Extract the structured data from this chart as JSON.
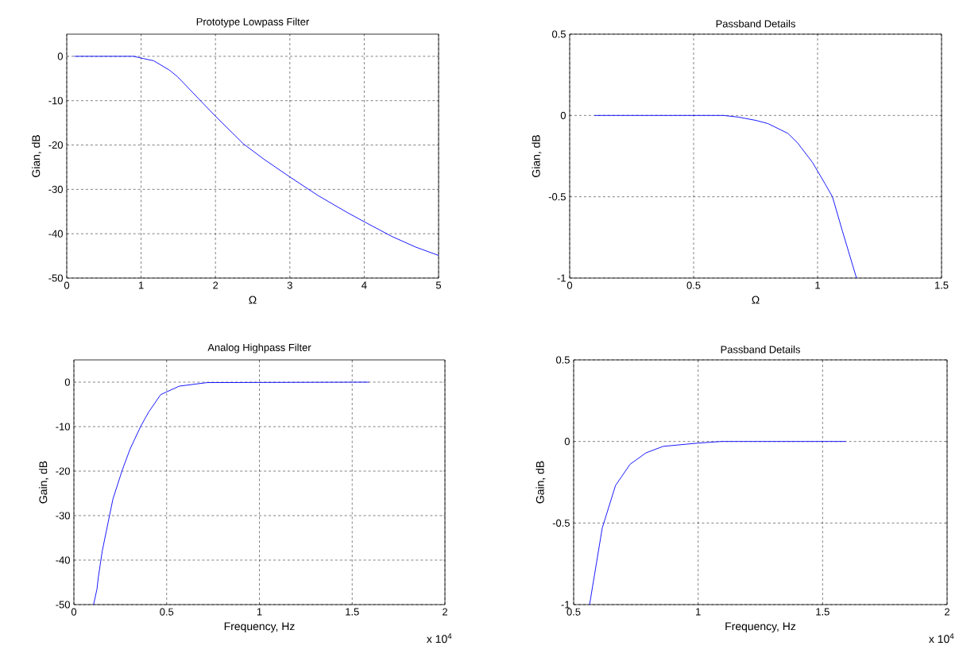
{
  "chart_data": [
    {
      "type": "line",
      "title": "Prototype Lowpass Filter",
      "xlabel": "Ω",
      "ylabel": "Gian, dB",
      "xlim": [
        0,
        5
      ],
      "ylim": [
        -50,
        5
      ],
      "xticks": [
        0,
        1,
        2,
        3,
        4,
        5
      ],
      "yticks": [
        -50,
        -40,
        -30,
        -20,
        -10,
        0
      ],
      "grid": true,
      "line_style": "solid",
      "series": [
        {
          "color": "#0000ff",
          "x": [
            0.1,
            0.9,
            1.03,
            1.17,
            1.38,
            1.49,
            1.81,
            2.0,
            2.38,
            2.66,
            3.0,
            3.38,
            3.77,
            4.0,
            4.37,
            4.69,
            5.0
          ],
          "values": [
            0,
            0,
            -0.5,
            -1,
            -3.1,
            -4.6,
            -10.2,
            -13.5,
            -19.8,
            -23.3,
            -27.2,
            -31.4,
            -35.2,
            -37.3,
            -40.6,
            -43,
            -44.9
          ]
        }
      ]
    },
    {
      "type": "line",
      "title": "Passband Details",
      "xlabel": "Ω",
      "ylabel": "Gian, dB",
      "xlim": [
        0,
        1.5
      ],
      "ylim": [
        -1,
        0.5
      ],
      "xticks": [
        0,
        0.5,
        1,
        1.5
      ],
      "yticks": [
        -1,
        -0.5,
        0,
        0.5
      ],
      "grid": true,
      "line_style": "solid",
      "series": [
        {
          "color": "#0000ff",
          "x": [
            0.1,
            0.62,
            0.68,
            0.75,
            0.8,
            0.88,
            0.92,
            0.98,
            1.03,
            1.06,
            1.1,
            1.157
          ],
          "values": [
            0,
            0,
            -0.01,
            -0.03,
            -0.05,
            -0.11,
            -0.17,
            -0.29,
            -0.42,
            -0.5,
            -0.71,
            -1
          ]
        }
      ]
    },
    {
      "type": "line",
      "title": "Analog Highpass Filter",
      "xlabel": "Frequency, Hz",
      "ylabel": "Gain, dB",
      "xlim": [
        0,
        2
      ],
      "ylim": [
        -50,
        5
      ],
      "xticks": [
        0,
        0.5,
        1,
        1.5,
        2
      ],
      "yticks": [
        -50,
        -40,
        -30,
        -20,
        -10,
        0
      ],
      "grid": true,
      "line_style": "solid",
      "annotations": [
        "x 10$^{4}$"
      ],
      "series": [
        {
          "color": "#0000ff",
          "x": [
            0.106,
            0.1245,
            0.1316,
            0.1531,
            0.2103,
            0.2604,
            0.3033,
            0.3605,
            0.4034,
            0.4678,
            0.568,
            0.7182,
            1.5908
          ],
          "values": [
            -50,
            -46.5,
            -43.9,
            -37.9,
            -26.3,
            -19.8,
            -15,
            -9.9,
            -6.7,
            -2.8,
            -0.9,
            -0.1,
            0
          ]
        }
      ]
    },
    {
      "type": "line",
      "title": "Passband Details",
      "xlabel": "Frequency, Hz",
      "ylabel": "Gain, dB",
      "xlim": [
        0.5,
        2
      ],
      "ylim": [
        -1,
        0.5
      ],
      "xticks": [
        0.5,
        1,
        1.5,
        2
      ],
      "yticks": [
        -1,
        -0.5,
        0,
        0.5
      ],
      "grid": true,
      "line_style": "solid",
      "annotations": [
        "x 10$^{4}$"
      ],
      "series": [
        {
          "color": "#0000ff",
          "x": [
            0.564,
            0.6149,
            0.6681,
            0.7266,
            0.7904,
            0.8596,
            1.0,
            1.0936,
            1.5936
          ],
          "values": [
            -1,
            -0.53,
            -0.27,
            -0.14,
            -0.07,
            -0.03,
            -0.01,
            0,
            0
          ]
        }
      ]
    }
  ]
}
